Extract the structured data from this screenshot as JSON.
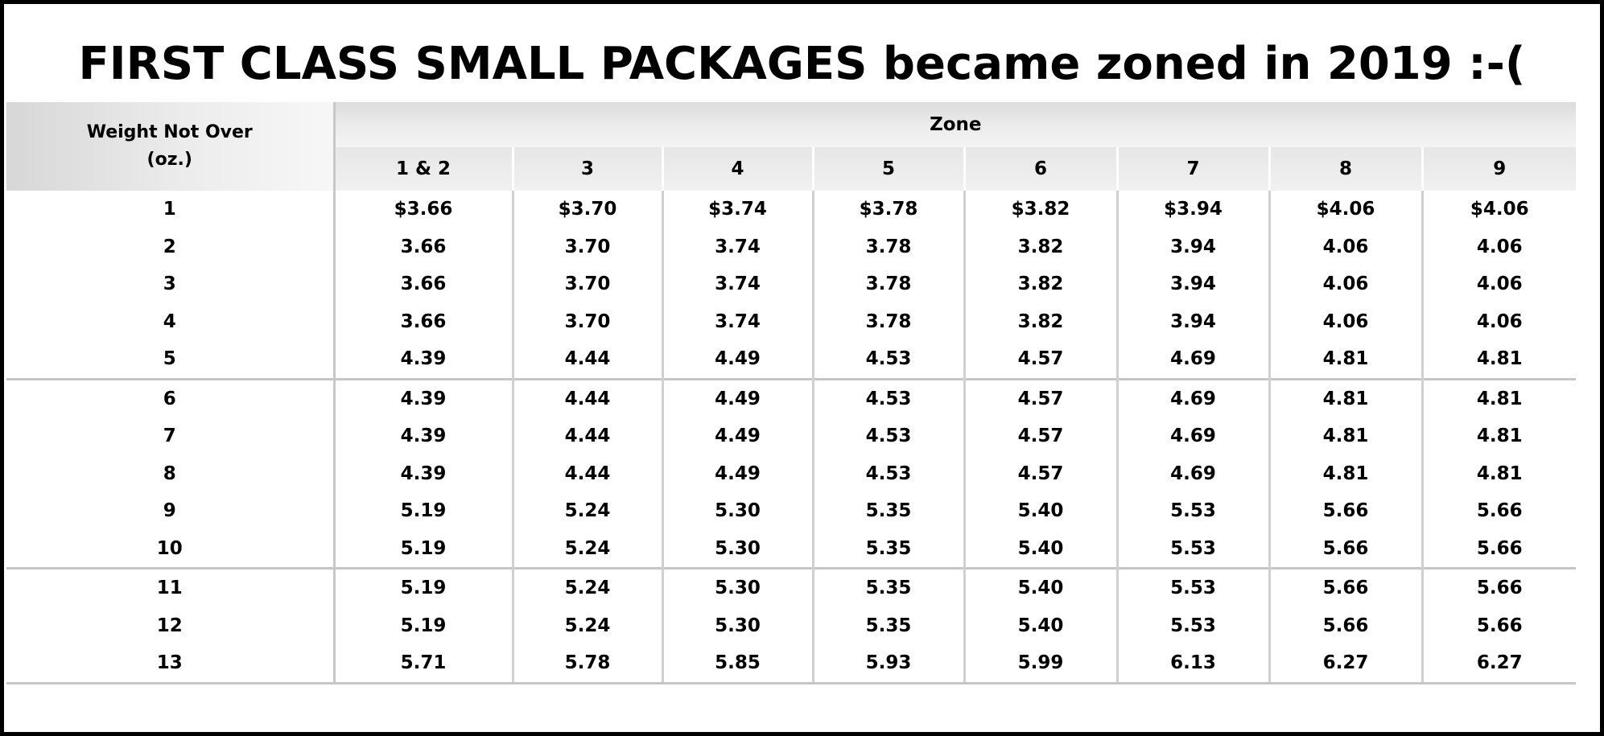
{
  "title": "FIRST CLASS SMALL PACKAGES became zoned in 2019  :-(",
  "table": {
    "weight_header_line1": "Weight Not Over",
    "weight_header_line2": "(oz.)",
    "zone_header": "Zone",
    "zones": [
      "1 & 2",
      "3",
      "4",
      "5",
      "6",
      "7",
      "8",
      "9"
    ],
    "rows": [
      {
        "weight": "1",
        "prices": [
          "$3.66",
          "$3.70",
          "$3.74",
          "$3.78",
          "$3.82",
          "$3.94",
          "$4.06",
          "$4.06"
        ]
      },
      {
        "weight": "2",
        "prices": [
          "3.66",
          "3.70",
          "3.74",
          "3.78",
          "3.82",
          "3.94",
          "4.06",
          "4.06"
        ]
      },
      {
        "weight": "3",
        "prices": [
          "3.66",
          "3.70",
          "3.74",
          "3.78",
          "3.82",
          "3.94",
          "4.06",
          "4.06"
        ]
      },
      {
        "weight": "4",
        "prices": [
          "3.66",
          "3.70",
          "3.74",
          "3.78",
          "3.82",
          "3.94",
          "4.06",
          "4.06"
        ]
      },
      {
        "weight": "5",
        "prices": [
          "4.39",
          "4.44",
          "4.49",
          "4.53",
          "4.57",
          "4.69",
          "4.81",
          "4.81"
        ]
      },
      {
        "weight": "6",
        "prices": [
          "4.39",
          "4.44",
          "4.49",
          "4.53",
          "4.57",
          "4.69",
          "4.81",
          "4.81"
        ]
      },
      {
        "weight": "7",
        "prices": [
          "4.39",
          "4.44",
          "4.49",
          "4.53",
          "4.57",
          "4.69",
          "4.81",
          "4.81"
        ]
      },
      {
        "weight": "8",
        "prices": [
          "4.39",
          "4.44",
          "4.49",
          "4.53",
          "4.57",
          "4.69",
          "4.81",
          "4.81"
        ]
      },
      {
        "weight": "9",
        "prices": [
          "5.19",
          "5.24",
          "5.30",
          "5.35",
          "5.40",
          "5.53",
          "5.66",
          "5.66"
        ]
      },
      {
        "weight": "10",
        "prices": [
          "5.19",
          "5.24",
          "5.30",
          "5.35",
          "5.40",
          "5.53",
          "5.66",
          "5.66"
        ]
      },
      {
        "weight": "11",
        "prices": [
          "5.19",
          "5.24",
          "5.30",
          "5.35",
          "5.40",
          "5.53",
          "5.66",
          "5.66"
        ]
      },
      {
        "weight": "12",
        "prices": [
          "5.19",
          "5.24",
          "5.30",
          "5.35",
          "5.40",
          "5.53",
          "5.66",
          "5.66"
        ]
      },
      {
        "weight": "13",
        "prices": [
          "5.71",
          "5.78",
          "5.85",
          "5.93",
          "5.99",
          "6.13",
          "6.27",
          "6.27"
        ]
      }
    ]
  }
}
